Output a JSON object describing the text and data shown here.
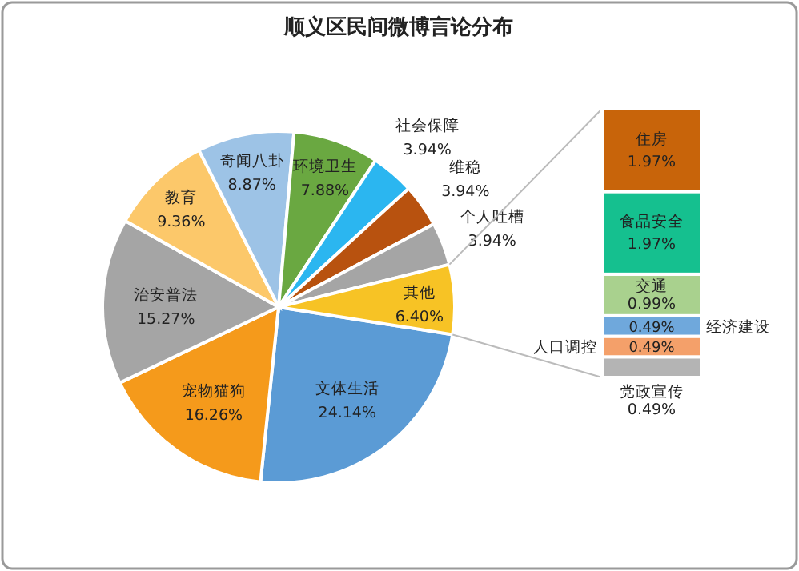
{
  "chart_data": [
    {
      "type": "pie",
      "title": "顺义区民间微博言论分布",
      "categories": [
        "文体生活",
        "宠物猫狗",
        "治安普法",
        "教育",
        "奇闻八卦",
        "环境卫生",
        "社会保障",
        "维稳",
        "个人吐槽",
        "其他"
      ],
      "values": [
        24.14,
        16.26,
        15.27,
        9.36,
        8.87,
        7.88,
        3.94,
        3.94,
        3.94,
        6.4
      ],
      "value_labels": [
        "24.14%",
        "16.26%",
        "15.27%",
        "9.36%",
        "8.87%",
        "7.88%",
        "3.94%",
        "3.94%",
        "3.94%",
        "6.40%"
      ],
      "colors": [
        "#5b9bd5",
        "#f59a1b",
        "#a5a5a5",
        "#fcc86a",
        "#9dc3e6",
        "#6aa841",
        "#2bb6f0",
        "#b8520f",
        "#a5a5a5",
        "#f7c325"
      ]
    },
    {
      "type": "bar",
      "stacked": true,
      "categories": [
        null
      ],
      "series": [
        {
          "name": "党政宣传",
          "color": "#b4b4b4",
          "values": [
            0.49
          ],
          "value_labels": [
            "0.49%"
          ]
        },
        {
          "name": "人口调控",
          "color": "#f4a06a",
          "values": [
            0.49
          ],
          "value_labels": [
            "0.49%"
          ]
        },
        {
          "name": "经济建设",
          "color": "#6fa8dc",
          "values": [
            0.49
          ],
          "value_labels": [
            "0.49%"
          ]
        },
        {
          "name": "交通",
          "color": "#a9d18e",
          "values": [
            0.99
          ],
          "value_labels": [
            "0.99%"
          ]
        },
        {
          "name": "食品安全",
          "color": "#15c08f",
          "values": [
            1.97
          ],
          "value_labels": [
            "1.97%"
          ]
        },
        {
          "name": "住房",
          "color": "#c8640a",
          "values": [
            1.97
          ],
          "value_labels": [
            "1.97%"
          ]
        }
      ]
    }
  ]
}
